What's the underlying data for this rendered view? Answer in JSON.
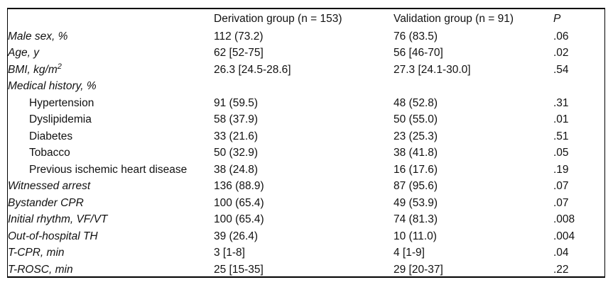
{
  "table": {
    "header": {
      "label": "",
      "derivation": "Derivation group (n   =   153)",
      "validation": "Validation group (n   =   91)",
      "p": "P"
    },
    "rows": [
      {
        "label": "Male sex, %",
        "style": "italic",
        "derivation": "112 (73.2)",
        "validation": "76 (83.5)",
        "p": ".06"
      },
      {
        "label": "Age, y",
        "style": "italic",
        "derivation": "62 [52-75]",
        "validation": "56 [46-70]",
        "p": ".02"
      },
      {
        "label": "BMI, kg/m",
        "label_sup": "2",
        "style": "italic",
        "derivation": "26.3 [24.5-28.6]",
        "validation": "27.3 [24.1-30.0]",
        "p": ".54"
      },
      {
        "label": "Medical history, %",
        "style": "italic",
        "derivation": "",
        "validation": "",
        "p": ""
      },
      {
        "label": "Hypertension",
        "style": "indent",
        "derivation": "91 (59.5)",
        "validation": "48 (52.8)",
        "p": ".31"
      },
      {
        "label": "Dyslipidemia",
        "style": "indent",
        "derivation": "58 (37.9)",
        "validation": "50 (55.0)",
        "p": ".01"
      },
      {
        "label": "Diabetes",
        "style": "indent",
        "derivation": "33 (21.6)",
        "validation": "23 (25.3)",
        "p": ".51"
      },
      {
        "label": "Tobacco",
        "style": "indent",
        "derivation": "50 (32.9)",
        "validation": "38 (41.8)",
        "p": ".05"
      },
      {
        "label": "Previous ischemic heart disease",
        "style": "indent",
        "derivation": "38 (24.8)",
        "validation": "16 (17.6)",
        "p": ".19"
      },
      {
        "label": "Witnessed arrest",
        "style": "italic",
        "derivation": "136 (88.9)",
        "validation": "87 (95.6)",
        "p": ".07"
      },
      {
        "label": "Bystander CPR",
        "style": "italic",
        "derivation": "100 (65.4)",
        "validation": "49 (53.9)",
        "p": ".07"
      },
      {
        "label": "Initial rhythm, VF/VT",
        "style": "italic",
        "derivation": "100 (65.4)",
        "validation": "74 (81.3)",
        "p": ".008"
      },
      {
        "label": "Out-of-hospital TH",
        "style": "italic",
        "derivation": "39 (26.4)",
        "validation": "10 (11.0)",
        "p": ".004"
      },
      {
        "label": "T-CPR, min",
        "style": "italic",
        "derivation": "3 [1-8]",
        "validation": "4 [1-9]",
        "p": ".04"
      },
      {
        "label": "T-ROSC, min",
        "style": "italic",
        "derivation": "25 [15-35]",
        "validation": "29 [20-37]",
        "p": ".22"
      }
    ]
  }
}
